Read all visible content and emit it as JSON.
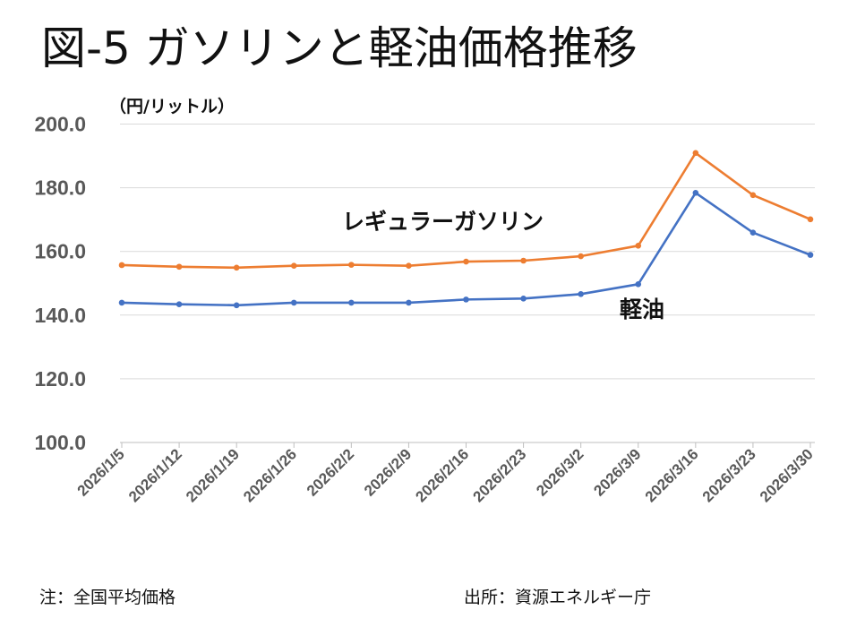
{
  "title": "図-5 ガソリンと軽油価格推移",
  "unit_label": "（円/リットル）",
  "note": "注：全国平均価格",
  "source": "出所：資源エネルギー庁",
  "chart_data": {
    "type": "line",
    "title": "図-5 ガソリンと軽油価格推移",
    "xlabel": "",
    "ylabel": "（円/リットル）",
    "ylim": [
      100,
      200
    ],
    "yticks": [
      "100.0",
      "120.0",
      "140.0",
      "160.0",
      "180.0",
      "200.0"
    ],
    "grid": true,
    "categories": [
      "2026/1/5",
      "2026/1/12",
      "2026/1/19",
      "2026/1/26",
      "2026/2/2",
      "2026/2/9",
      "2026/2/16",
      "2026/2/23",
      "2026/3/2",
      "2026/3/9",
      "2026/3/16",
      "2026/3/23",
      "2026/3/30"
    ],
    "series": [
      {
        "name": "レギュラーガソリン",
        "color": "#ED7D31",
        "values": [
          155.7,
          155.2,
          154.9,
          155.5,
          155.8,
          155.5,
          156.8,
          157.1,
          158.5,
          161.8,
          190.9,
          177.7,
          170.1
        ]
      },
      {
        "name": "軽油",
        "color": "#4472C4",
        "values": [
          143.9,
          143.4,
          143.1,
          143.9,
          143.9,
          143.9,
          144.9,
          145.2,
          146.6,
          149.7,
          178.4,
          165.9,
          158.9
        ]
      }
    ]
  }
}
